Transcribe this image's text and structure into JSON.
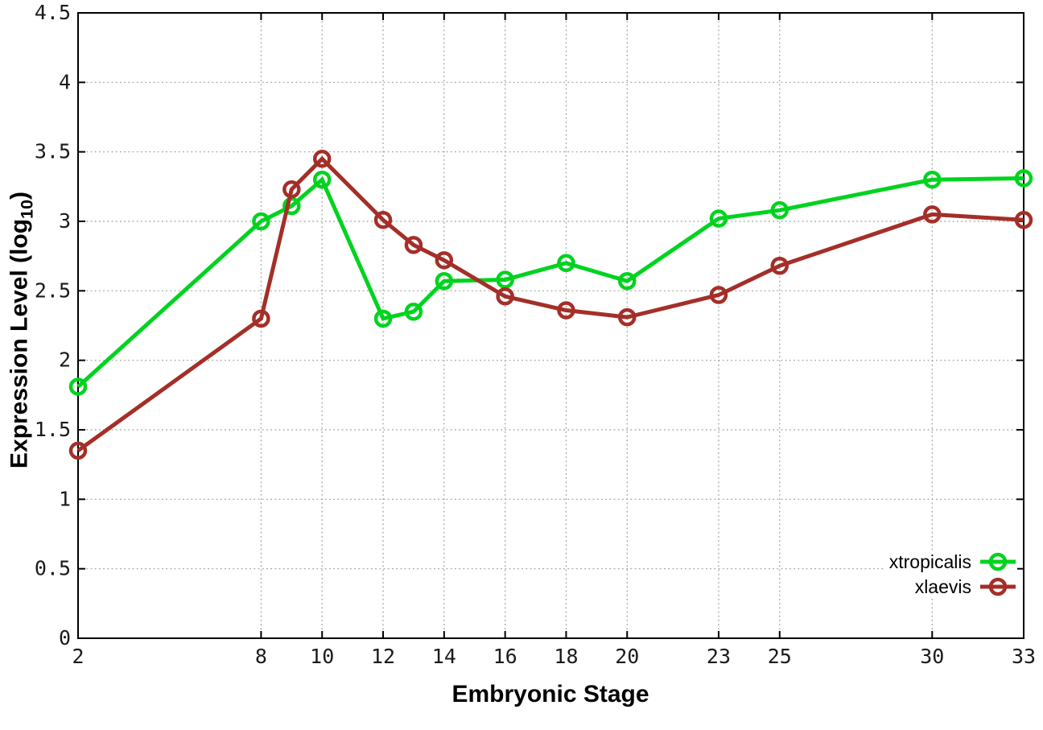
{
  "chart_data": {
    "type": "line",
    "title": "",
    "xlabel": "Embryonic Stage",
    "ylabel_prefix": "Expression Level (log",
    "ylabel_sub": "10",
    "ylabel_suffix": ")",
    "x": [
      2,
      8,
      9,
      10,
      12,
      13,
      14,
      16,
      18,
      20,
      23,
      25,
      30,
      33
    ],
    "series": [
      {
        "name": "xtropicalis",
        "color": "#00d31f",
        "values": [
          1.81,
          3.0,
          3.11,
          3.3,
          2.3,
          2.35,
          2.57,
          2.58,
          2.7,
          2.57,
          3.02,
          3.08,
          3.3,
          3.31
        ]
      },
      {
        "name": "xlaevis",
        "color": "#a42f28",
        "values": [
          1.35,
          2.3,
          3.23,
          3.45,
          3.01,
          2.83,
          2.72,
          2.46,
          2.36,
          2.31,
          2.47,
          2.68,
          3.05,
          3.01
        ]
      }
    ],
    "xlim": [
      2,
      33
    ],
    "ylim": [
      0,
      4.5
    ],
    "xticks": [
      {
        "value": 2,
        "label": "2"
      },
      {
        "value": 8,
        "label": "8"
      },
      {
        "value": 10,
        "label": "10"
      },
      {
        "value": 12,
        "label": "12"
      },
      {
        "value": 14,
        "label": "14"
      },
      {
        "value": 16,
        "label": "16"
      },
      {
        "value": 18,
        "label": "18"
      },
      {
        "value": 20,
        "label": "20"
      },
      {
        "value": 23,
        "label": "23"
      },
      {
        "value": 25,
        "label": "25"
      },
      {
        "value": 30,
        "label": "30"
      },
      {
        "value": 33,
        "label": "33"
      }
    ],
    "yticks": [
      {
        "value": 0,
        "label": "0"
      },
      {
        "value": 0.5,
        "label": "0.5"
      },
      {
        "value": 1,
        "label": "1"
      },
      {
        "value": 1.5,
        "label": "1.5"
      },
      {
        "value": 2,
        "label": "2"
      },
      {
        "value": 2.5,
        "label": "2.5"
      },
      {
        "value": 3,
        "label": "3"
      },
      {
        "value": 3.5,
        "label": "3.5"
      },
      {
        "value": 4,
        "label": "4"
      },
      {
        "value": 4.5,
        "label": "4.5"
      }
    ],
    "grid": true,
    "grid_style": "dotted",
    "grid_color": "#999999",
    "axis_color": "#000000",
    "background": "#ffffff",
    "legend_position": "bottom-right-inside",
    "legend_entries": [
      "xtropicalis",
      "xlaevis"
    ]
  }
}
